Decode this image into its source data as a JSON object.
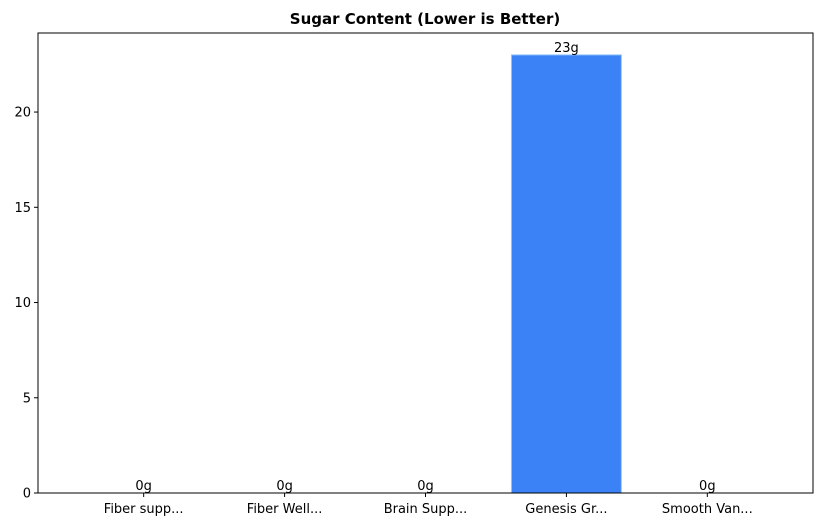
{
  "chart_data": {
    "type": "bar",
    "title": "Sugar Content (Lower is Better)",
    "xlabel": "",
    "ylabel": "",
    "categories": [
      "Fiber supp...",
      "Fiber Well...",
      "Brain Supp...",
      "Genesis Gr...",
      "Smooth Van..."
    ],
    "values": [
      0,
      0,
      0,
      23,
      0
    ],
    "data_labels": [
      "0g",
      "0g",
      "0g",
      "23g",
      "0g"
    ],
    "ylim": [
      0,
      24.15
    ],
    "yticks": [
      0,
      5,
      10,
      15,
      20
    ],
    "grid": false,
    "legend": "none",
    "bar_color": "#3b82f6",
    "bar_edge_color": "#93c5fd"
  }
}
